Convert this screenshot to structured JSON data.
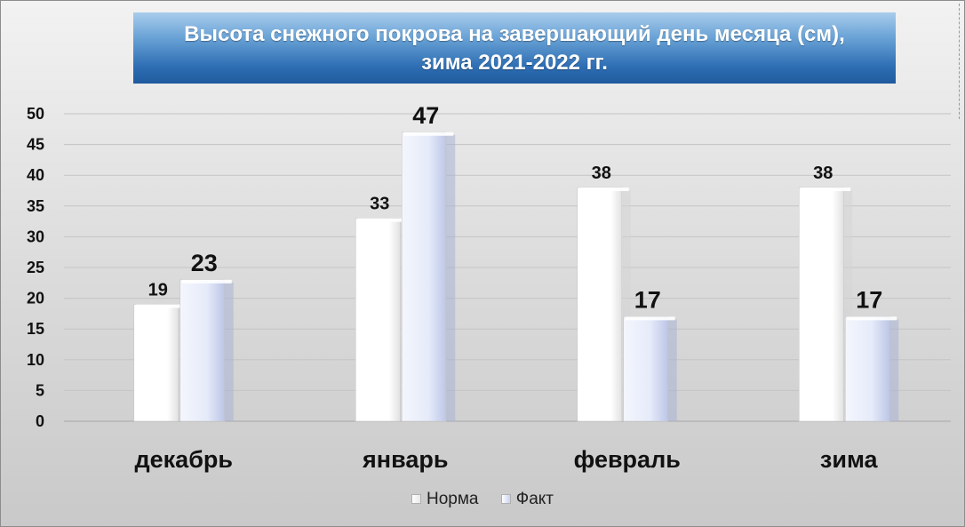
{
  "chart_data": {
    "type": "bar",
    "title": "Высота снежного покрова на завершающий день месяца (см),",
    "subtitle": "зима 2021-2022 гг.",
    "categories": [
      "декабрь",
      "январь",
      "февраль",
      "зима"
    ],
    "series": [
      {
        "name": "Норма",
        "values": [
          19,
          33,
          38,
          38
        ],
        "color": "#ffffff"
      },
      {
        "name": "Факт",
        "values": [
          23,
          47,
          17,
          17
        ],
        "color": "#dfe6f8"
      }
    ],
    "ylim": [
      0,
      50
    ],
    "yticks": [
      "0",
      "5",
      "10",
      "15",
      "20",
      "25",
      "30",
      "35",
      "40",
      "45",
      "50"
    ],
    "grid": true,
    "legend_position": "bottom"
  },
  "colors": {
    "title_background": "#2f6fb4",
    "title_text": "#ffffff",
    "plot_background": "#dcdcdc"
  }
}
